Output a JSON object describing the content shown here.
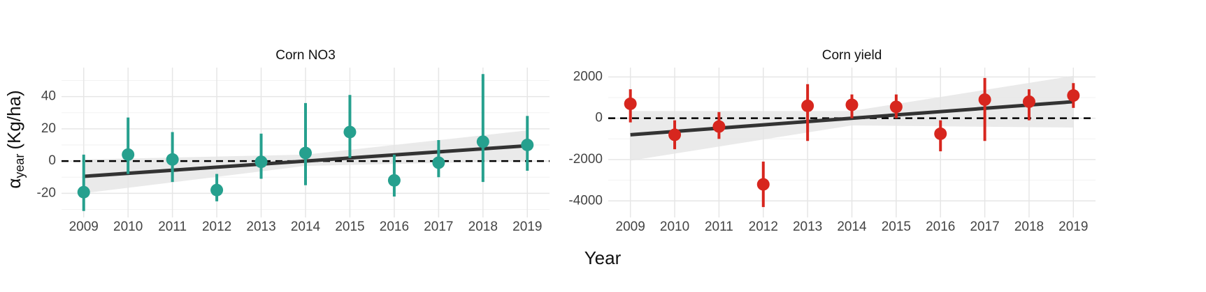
{
  "x_label": "Year",
  "y_label": {
    "symbol": "α",
    "subscript": "year",
    "unit": "(Kg/ha)"
  },
  "chart_data": [
    {
      "type": "errorbar",
      "title": "Corn NO3",
      "x": [
        2009,
        2010,
        2011,
        2012,
        2013,
        2014,
        2015,
        2016,
        2017,
        2018,
        2019
      ],
      "xlim": [
        2008.5,
        2019.5
      ],
      "xticks": [
        2009,
        2010,
        2011,
        2012,
        2013,
        2014,
        2015,
        2016,
        2017,
        2018,
        2019
      ],
      "ylim": [
        -35,
        58
      ],
      "yticks": [
        -20,
        0,
        20,
        40
      ],
      "grid": true,
      "hline": 0,
      "series": [
        {
          "color": "#26a08e",
          "values": [
            -19.3,
            4,
            1,
            -18,
            -0.5,
            5,
            18,
            -12,
            -1,
            12,
            10
          ],
          "lower": [
            -31,
            -8,
            -13,
            -25,
            -11,
            -15,
            2,
            -22,
            -10,
            -13,
            -6
          ],
          "upper": [
            4,
            27,
            18,
            -8,
            17,
            36,
            41,
            4,
            13,
            54,
            28
          ]
        }
      ],
      "trend": {
        "x": [
          2009,
          2019
        ],
        "y": [
          -9.5,
          9.5
        ],
        "color": "#333333"
      },
      "band": {
        "x": [
          2009,
          2014,
          2019
        ],
        "lower": [
          -20,
          -3,
          0
        ],
        "upper": [
          1,
          4,
          19
        ],
        "color": "#e5e5e5"
      }
    },
    {
      "type": "errorbar",
      "title": "Corn yield",
      "x": [
        2009,
        2010,
        2011,
        2012,
        2013,
        2014,
        2015,
        2016,
        2017,
        2018,
        2019
      ],
      "xlim": [
        2008.5,
        2019.5
      ],
      "xticks": [
        2009,
        2010,
        2011,
        2012,
        2013,
        2014,
        2015,
        2016,
        2017,
        2018,
        2019
      ],
      "ylim": [
        -4800,
        2450
      ],
      "yticks": [
        -4000,
        -2000,
        0,
        2000
      ],
      "grid": true,
      "hline": 0,
      "series": [
        {
          "color": "#d7261e",
          "values": [
            700,
            -800,
            -400,
            -3200,
            600,
            650,
            550,
            -750,
            900,
            800,
            1100
          ],
          "lower": [
            -200,
            -1500,
            -1000,
            -4300,
            -1100,
            0,
            0,
            -1600,
            -1100,
            -100,
            500
          ],
          "upper": [
            1400,
            -100,
            300,
            -2100,
            1650,
            1150,
            1150,
            -100,
            1950,
            1400,
            1700
          ]
        }
      ],
      "trend": {
        "x": [
          2009,
          2019
        ],
        "y": [
          -800,
          800
        ],
        "color": "#333333"
      },
      "band": {
        "x": [
          2009,
          2014,
          2019
        ],
        "lower": [
          -2050,
          -350,
          -450
        ],
        "upper": [
          350,
          350,
          2050
        ],
        "color": "#e5e5e5"
      }
    }
  ]
}
